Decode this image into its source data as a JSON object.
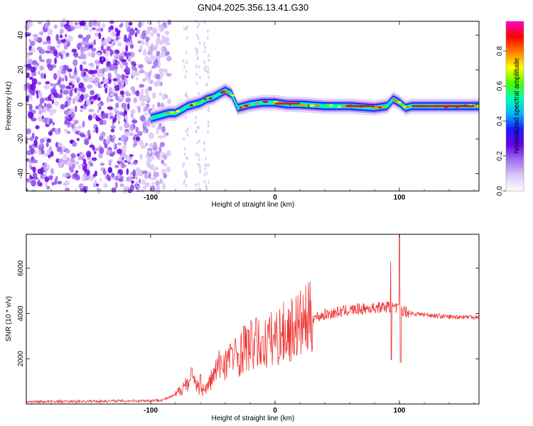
{
  "title": "GN04.2025.356.13.41.G30",
  "chart_data": [
    {
      "type": "heatmap",
      "name": "spectrogram",
      "xlabel": "Height of straight line (km)",
      "ylabel": "Frequency (Hz)",
      "xlim": [
        -200,
        164
      ],
      "ylim": [
        -50,
        48
      ],
      "xticks": [
        -100,
        0,
        100
      ],
      "xtick_labels": [
        "-100",
        "0",
        "100"
      ],
      "yticks": [
        -40,
        -20,
        0,
        20,
        40
      ],
      "ytick_labels": [
        "-40",
        "-20",
        "0",
        "20",
        "40"
      ],
      "ridge": {
        "x": [
          -100,
          -95,
          -90,
          -85,
          -80,
          -75,
          -70,
          -65,
          -60,
          -55,
          -50,
          -45,
          -40,
          -35,
          -30,
          -25,
          -20,
          -10,
          0,
          10,
          20,
          40,
          60,
          80,
          90,
          95,
          100,
          105,
          110,
          120,
          140,
          164
        ],
        "frequency": [
          -8,
          -7,
          -6,
          -5,
          -5,
          -3,
          -1,
          0,
          1,
          3,
          4,
          6,
          8,
          6,
          -2,
          -1,
          0,
          1,
          1,
          0,
          0,
          -1,
          -1,
          -2,
          -1,
          3,
          1,
          -2,
          -1,
          -1,
          -1,
          -1
        ],
        "noise_region": [
          -200,
          -85
        ]
      },
      "colorbar": {
        "label": "Normalized spectral amplitude",
        "range": [
          0,
          0.97
        ],
        "ticks": [
          0.0,
          0.2,
          0.4,
          0.6,
          0.8
        ],
        "tick_labels": [
          "0.0",
          "0.2",
          "0.4",
          "0.6",
          "0.8"
        ],
        "colormap": [
          "#ffffff",
          "#dcc8f8",
          "#a070f0",
          "#6a00e8",
          "#1a1aff",
          "#00b8ff",
          "#00ffb0",
          "#4cff00",
          "#ffff00",
          "#ff8000",
          "#ff0000",
          "#ff00c8"
        ]
      }
    },
    {
      "type": "line",
      "name": "snr",
      "xlabel": "Height of straight line (km)",
      "ylabel": "SNR (10 * v/v)",
      "xlim": [
        -200,
        164
      ],
      "ylim": [
        0,
        7500
      ],
      "xticks": [
        -100,
        0,
        100
      ],
      "xtick_labels": [
        "-100",
        "0",
        "100"
      ],
      "yticks": [
        2000,
        4000,
        6000
      ],
      "ytick_labels": [
        "2000",
        "4000",
        "6000"
      ],
      "color": "#ee3333",
      "envelope": {
        "x": [
          -200,
          -150,
          -100,
          -90,
          -80,
          -75,
          -70,
          -65,
          -60,
          -55,
          -50,
          -45,
          -40,
          -35,
          -30,
          -25,
          -20,
          -15,
          -10,
          -5,
          0,
          10,
          20,
          30,
          40,
          50,
          60,
          70,
          80,
          90,
          95,
          100,
          105,
          110,
          120,
          140,
          164
        ],
        "snr": [
          100,
          120,
          150,
          180,
          400,
          700,
          1000,
          900,
          600,
          700,
          1200,
          1700,
          1900,
          2000,
          2100,
          2400,
          2600,
          2600,
          2600,
          2800,
          2950,
          3200,
          3500,
          3800,
          3950,
          4050,
          4150,
          4200,
          4250,
          4300,
          4250,
          4200,
          4100,
          4000,
          3950,
          3850,
          3850
        ],
        "spikes": [
          {
            "x": 93,
            "snr": 6300
          },
          {
            "x": 100,
            "snr": 7500
          },
          {
            "x": 93.5,
            "snr": 1950
          },
          {
            "x": 101,
            "snr": 1850
          },
          {
            "x": -67,
            "snr": 1600
          },
          {
            "x": -60,
            "snr": 1300
          },
          {
            "x": -35,
            "snr": 2500
          },
          {
            "x": -25,
            "snr": 3450
          },
          {
            "x": -15,
            "snr": 3800
          },
          {
            "x": -10,
            "snr": 3000
          }
        ]
      }
    }
  ]
}
